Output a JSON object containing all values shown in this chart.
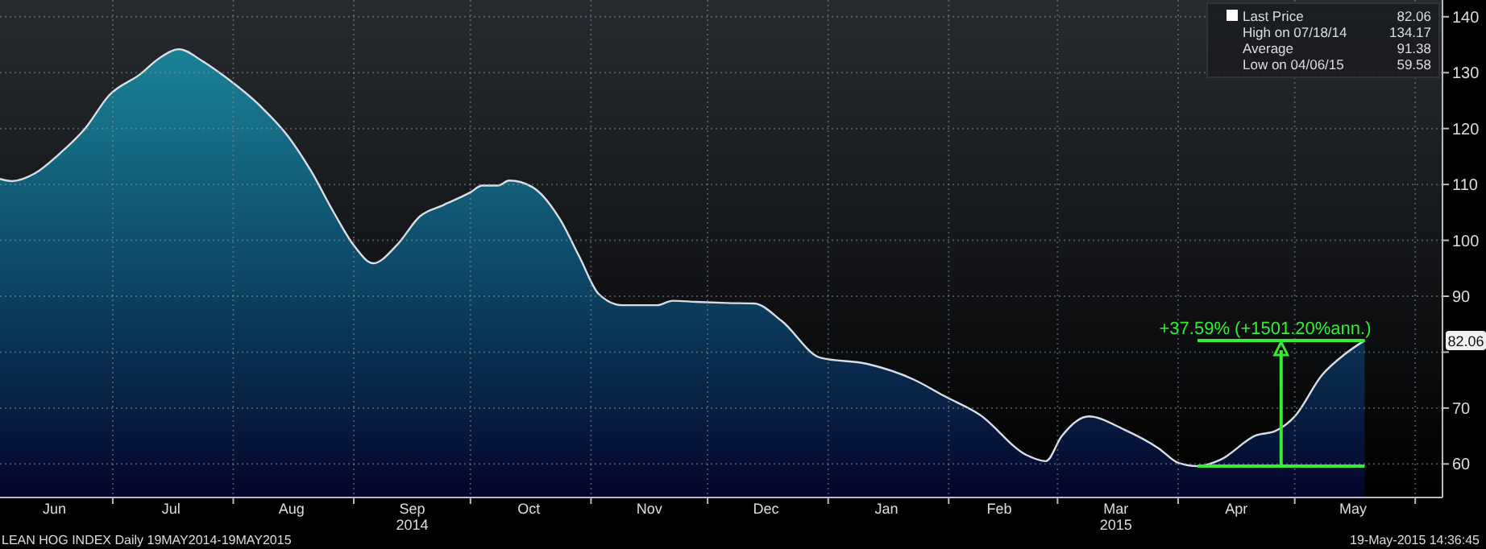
{
  "chart_data": {
    "type": "area",
    "legend": "top right",
    "grid": true,
    "xlim": [
      "2014-06-02",
      "2015-06-08"
    ],
    "ylim": [
      54,
      143
    ],
    "yticks": [
      60,
      70,
      {
        "value": 80,
        "label": null
      },
      90,
      100,
      110,
      120,
      130,
      140
    ],
    "xticks": [
      {
        "value": "2014-06-16",
        "label": "Jun"
      },
      {
        "value": "2014-07-01",
        "label": null
      },
      {
        "value": "2014-07-16",
        "label": "Jul"
      },
      {
        "value": "2014-08-01",
        "label": null
      },
      {
        "value": "2014-08-16",
        "label": "Aug"
      },
      {
        "value": "2014-09-01",
        "label": null
      },
      {
        "value": "2014-09-16",
        "label": "Sep 2014"
      },
      {
        "value": "2014-10-01",
        "label": null
      },
      {
        "value": "2014-10-16",
        "label": "Oct"
      },
      {
        "value": "2014-11-01",
        "label": null
      },
      {
        "value": "2014-11-16",
        "label": "Nov"
      },
      {
        "value": "2014-12-01",
        "label": null
      },
      {
        "value": "2014-12-16",
        "label": "Dec"
      },
      {
        "value": "2015-01-01",
        "label": null
      },
      {
        "value": "2015-01-16",
        "label": "Jan"
      },
      {
        "value": "2015-02-01",
        "label": null
      },
      {
        "value": "2015-02-14",
        "label": "Feb"
      },
      {
        "value": "2015-03-01",
        "label": null
      },
      {
        "value": "2015-03-16",
        "label": "Mar 2015"
      },
      {
        "value": "2015-04-01",
        "label": null
      },
      {
        "value": "2015-04-16",
        "label": "Apr"
      },
      {
        "value": "2015-05-01",
        "label": null
      },
      {
        "value": "2015-05-16",
        "label": "May"
      },
      {
        "value": "2015-06-01",
        "label": null
      }
    ],
    "x": [
      "2014-06-02",
      "2014-06-05",
      "2014-06-11",
      "2014-06-17",
      "2014-06-24",
      "2014-06-30",
      "2014-07-08",
      "2014-07-13",
      "2014-07-18",
      "2014-07-24",
      "2014-07-30",
      "2014-08-08",
      "2014-08-15",
      "2014-08-21",
      "2014-08-27",
      "2014-09-01",
      "2014-09-06",
      "2014-09-12",
      "2014-09-18",
      "2014-09-24",
      "2014-10-01",
      "2014-10-04",
      "2014-10-08",
      "2014-10-11",
      "2014-10-17",
      "2014-10-24",
      "2014-10-29",
      "2014-11-03",
      "2014-11-09",
      "2014-11-18",
      "2014-11-22",
      "2014-11-28",
      "2014-12-06",
      "2014-12-13",
      "2014-12-20",
      "2014-12-30",
      "2015-01-11",
      "2015-01-23",
      "2015-01-31",
      "2015-02-09",
      "2015-02-21",
      "2015-02-26",
      "2015-03-02",
      "2015-03-09",
      "2015-03-18",
      "2015-03-27",
      "2015-04-01",
      "2015-04-06",
      "2015-04-12",
      "2015-04-21",
      "2015-04-26",
      "2015-05-01",
      "2015-05-08",
      "2015-05-14",
      "2015-05-19"
    ],
    "series": [
      {
        "name": "Last Price",
        "color": "#d8dde6",
        "values": [
          111.0,
          110.6,
          112.0,
          115.3,
          120.1,
          125.9,
          129.7,
          132.6,
          134.2,
          132.1,
          129.2,
          124.0,
          118.7,
          112.4,
          104.8,
          99.1,
          95.9,
          99.1,
          104.3,
          106.3,
          108.6,
          109.8,
          109.8,
          110.7,
          109.5,
          103.8,
          97.1,
          90.4,
          88.4,
          88.4,
          89.2,
          89.0,
          88.8,
          88.7,
          85.6,
          79.0,
          77.9,
          75.1,
          72.1,
          68.8,
          61.6,
          60.5,
          64.9,
          68.5,
          66.2,
          62.8,
          60.2,
          59.6,
          60.8,
          65.1,
          65.9,
          68.5,
          75.9,
          79.7,
          82.1
        ]
      }
    ],
    "annotations": [
      "82.06",
      "High on 07/18/14 134.17",
      "Average 91.38",
      "Low on 04/06/15 59.58",
      "+37.59% (+1501.20%ann.)",
      "LEAN HOG INDEX  Daily 19MAY2014-19MAY2015",
      "19-May-2015 14:36:45"
    ]
  }
}
